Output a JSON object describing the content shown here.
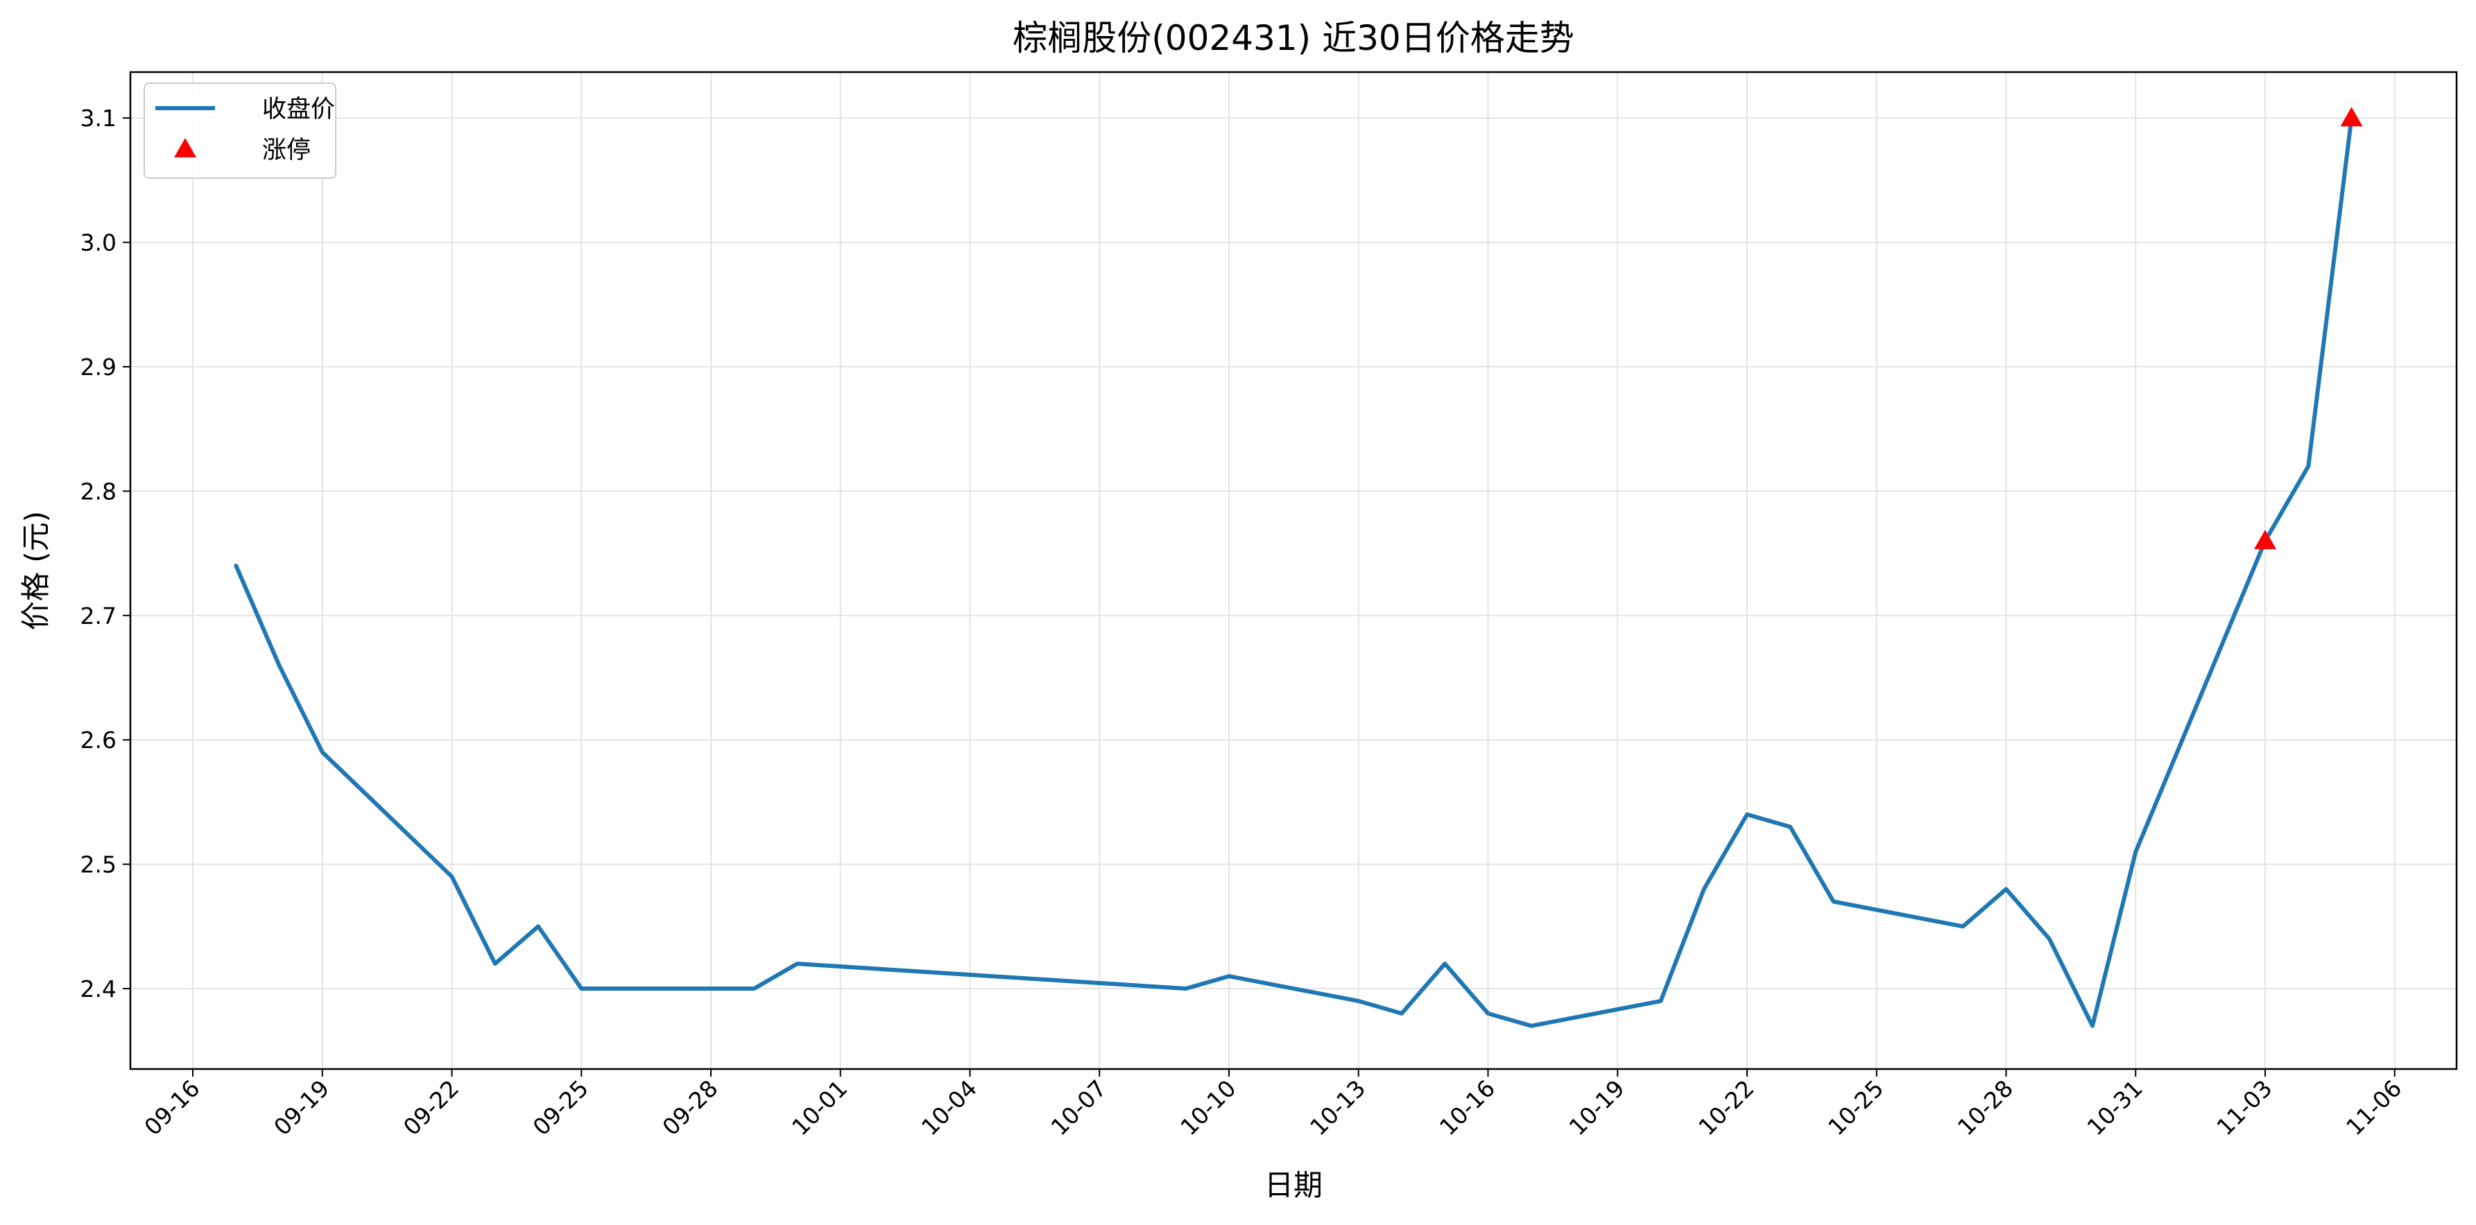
{
  "chart_data": {
    "type": "line",
    "title": "棕榈股份(002431) 近30日价格走势",
    "xlabel": "日期",
    "ylabel": "价格 (元)",
    "x_axis": "date",
    "x_tick_labels": [
      "09-16",
      "09-19",
      "09-22",
      "09-25",
      "09-28",
      "10-01",
      "10-04",
      "10-07",
      "10-10",
      "10-13",
      "10-16",
      "10-19",
      "10-22",
      "10-25",
      "10-28",
      "10-31",
      "11-03",
      "11-06"
    ],
    "y_ticks": [
      2.4,
      2.5,
      2.6,
      2.7,
      2.8,
      2.9,
      3.0,
      3.1
    ],
    "ylim": [
      2.335,
      3.135
    ],
    "grid": true,
    "legend_position": "top-left",
    "series": [
      {
        "name": "收盘价",
        "color": "#1f77b4",
        "x": [
          "09-17",
          "09-18",
          "09-19",
          "09-22",
          "09-23",
          "09-24",
          "09-25",
          "09-26",
          "09-29",
          "09-30",
          "10-09",
          "10-10",
          "10-13",
          "10-14",
          "10-15",
          "10-16",
          "10-17",
          "10-20",
          "10-21",
          "10-22",
          "10-23",
          "10-24",
          "10-27",
          "10-28",
          "10-29",
          "10-30",
          "10-31",
          "11-03",
          "11-04",
          "11-05"
        ],
        "values": [
          2.74,
          2.66,
          2.59,
          2.49,
          2.42,
          2.45,
          2.4,
          2.4,
          2.4,
          2.42,
          2.4,
          2.41,
          2.39,
          2.38,
          2.42,
          2.38,
          2.37,
          2.39,
          2.48,
          2.54,
          2.53,
          2.47,
          2.45,
          2.48,
          2.44,
          2.37,
          2.51,
          2.76,
          2.82,
          3.1
        ]
      }
    ],
    "markers": {
      "name": "涨停",
      "color": "#ff0000",
      "symbol": "triangle",
      "x": [
        "11-03",
        "11-05"
      ],
      "values": [
        2.76,
        3.1
      ]
    }
  }
}
